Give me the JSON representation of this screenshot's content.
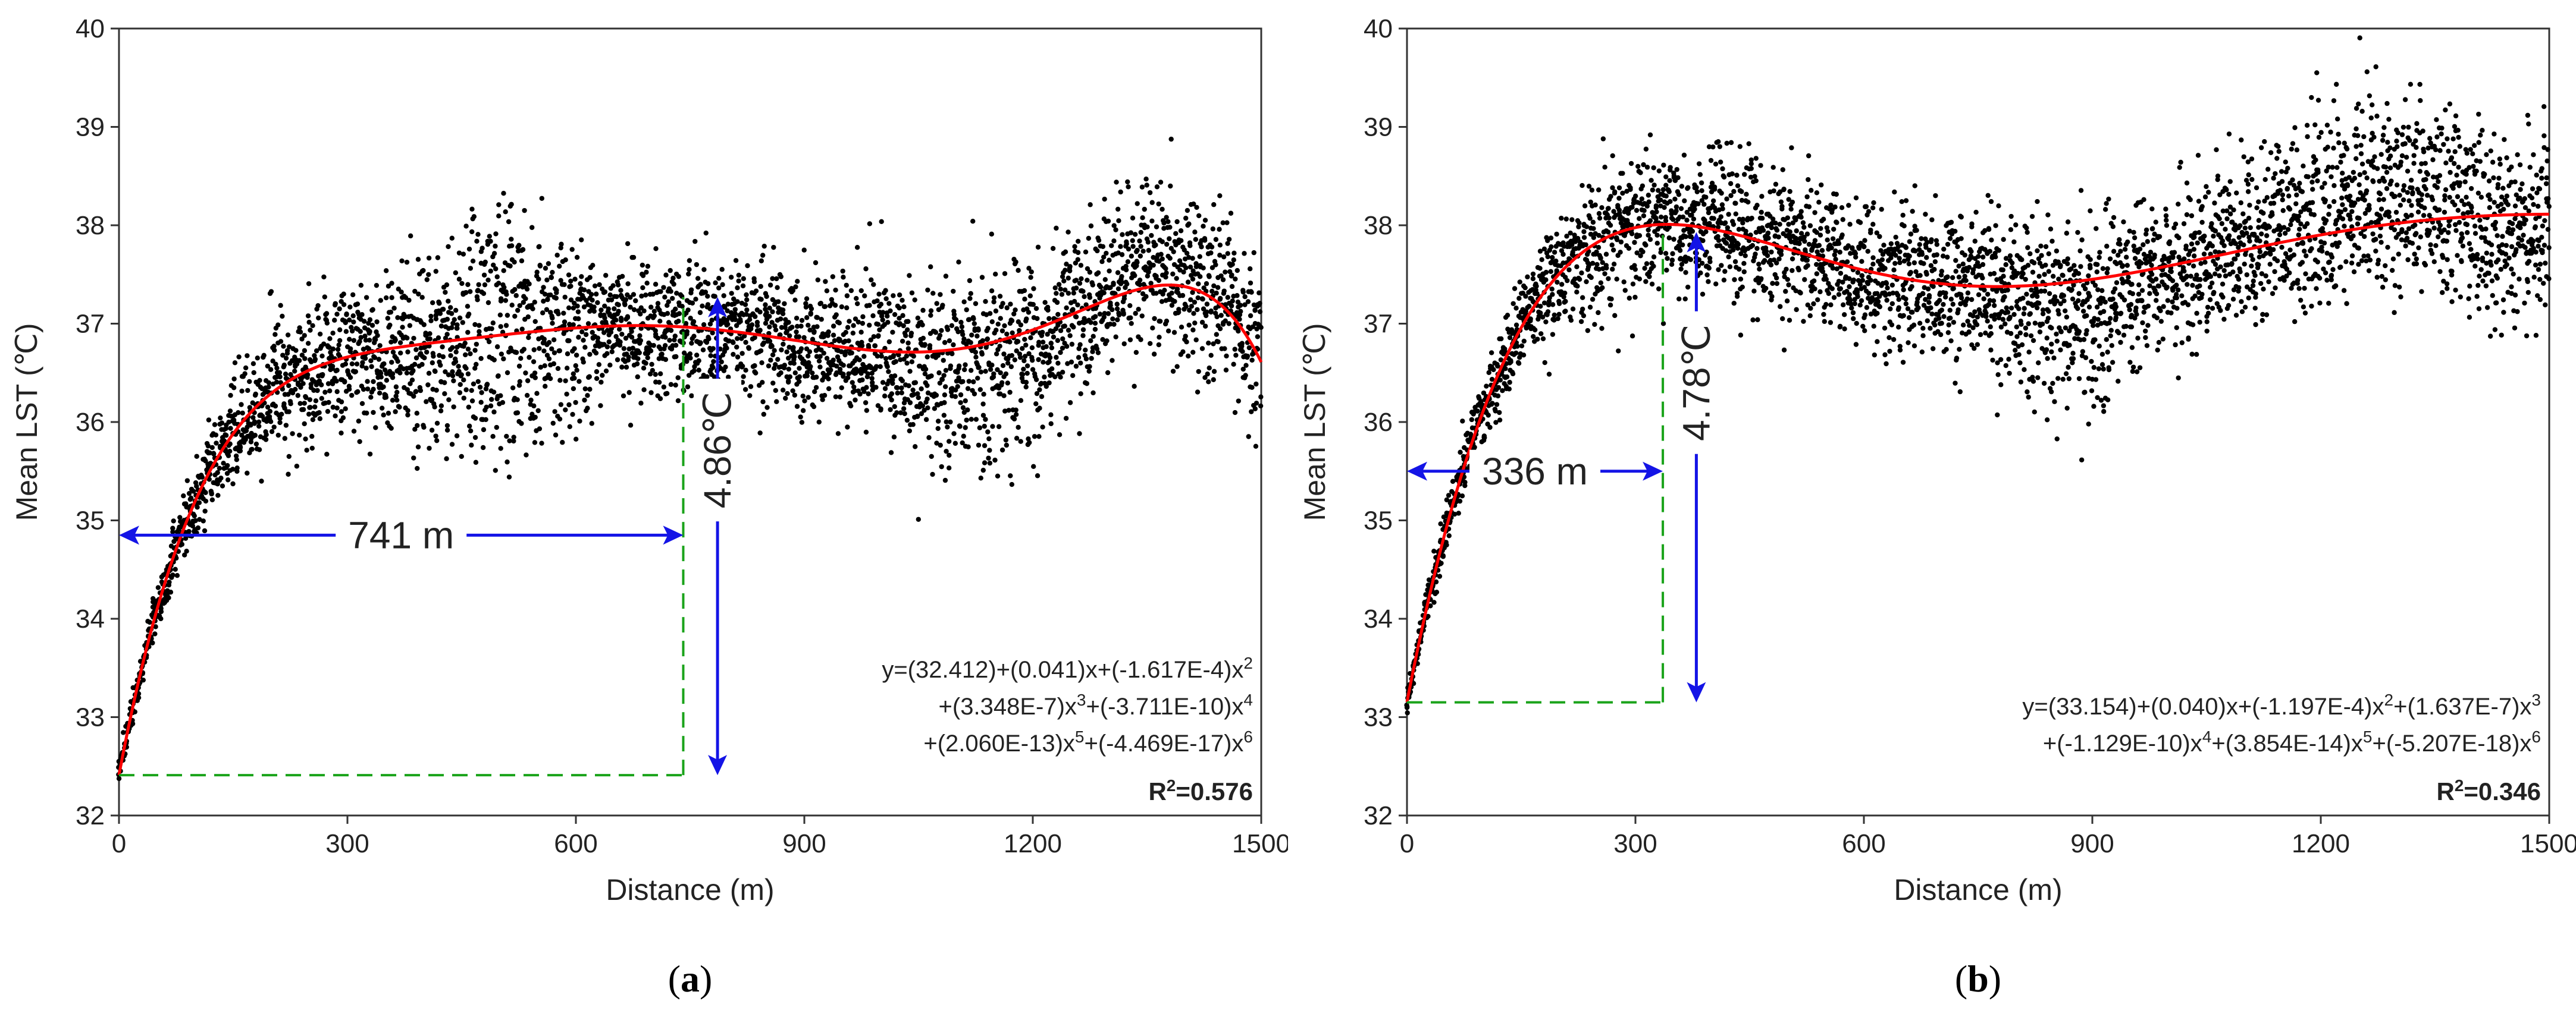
{
  "chart_data": [
    {
      "type": "scatter",
      "panel_label": "a",
      "xlabel": "Distance (m)",
      "ylabel": "Mean LST (℃)",
      "xlim": [
        0,
        1500
      ],
      "ylim": [
        32,
        40
      ],
      "xticks": [
        0,
        300,
        600,
        900,
        1200,
        1500
      ],
      "yticks": [
        32,
        33,
        34,
        35,
        36,
        37,
        38,
        39,
        40
      ],
      "marker_color": "#000000",
      "fit_color": "#ff0000",
      "fit": {
        "coefficients": [
          32.412,
          0.041,
          -0.0001617,
          3.348e-07,
          -3.711e-10,
          2.06e-13,
          -4.469e-17
        ],
        "r2_label": "R",
        "r2_sup": "2",
        "r2_value": "=0.576",
        "equation_lines": [
          [
            {
              "t": "y=(32.412)+(0.041)x+(-1.617E-4)x"
            },
            {
              "t": "2",
              "sup": true
            }
          ],
          [
            {
              "t": "+(3.348E-7)x"
            },
            {
              "t": "3",
              "sup": true
            },
            {
              "t": "+(-3.711E-10)x"
            },
            {
              "t": "4",
              "sup": true
            }
          ],
          [
            {
              "t": "+(2.060E-13)x"
            },
            {
              "t": "5",
              "sup": true
            },
            {
              "t": "+(-4.469E-17)x"
            },
            {
              "t": "6",
              "sup": true
            }
          ]
        ]
      },
      "annotations": {
        "distance_label": "741 m",
        "distance_value": 741,
        "delta_label": "4.86℃",
        "start_lst": 32.41,
        "peak_lst": 37.27,
        "arrow_y": 34.85,
        "delta_arrow_x": 786
      },
      "scatter_model": {
        "seed": 7,
        "points_per_x": 4,
        "x_step": 1.6,
        "bumps": [
          {
            "center": 500,
            "width": 90,
            "amp": 0.75
          },
          {
            "center": 1350,
            "width": 110,
            "amp": 0.55
          }
        ],
        "dips": [
          {
            "center": 1150,
            "width": 120,
            "amp": 0.7
          },
          {
            "center": 500,
            "width": 120,
            "amp": 0.7
          }
        ]
      }
    },
    {
      "type": "scatter",
      "panel_label": "b",
      "xlabel": "Distance (m)",
      "ylabel": "Mean LST (℃)",
      "xlim": [
        0,
        1500
      ],
      "ylim": [
        32,
        40
      ],
      "xticks": [
        0,
        300,
        600,
        900,
        1200,
        1500
      ],
      "yticks": [
        32,
        33,
        34,
        35,
        36,
        37,
        38,
        39,
        40
      ],
      "marker_color": "#000000",
      "fit_color": "#ff0000",
      "fit": {
        "coefficients": [
          33.154,
          0.04,
          -0.0001197,
          1.637e-07,
          -1.129e-10,
          3.854e-14,
          -5.207e-18
        ],
        "r2_label": "R",
        "r2_sup": "2",
        "r2_value": "=0.346",
        "equation_lines": [
          [
            {
              "t": "y=(33.154)+(0.040)x+(-1.197E-4)x"
            },
            {
              "t": "2",
              "sup": true
            },
            {
              "t": "+(1.637E-7)x"
            },
            {
              "t": "3",
              "sup": true
            }
          ],
          [
            {
              "t": "+(-1.129E-10)x"
            },
            {
              "t": "4",
              "sup": true
            },
            {
              "t": "+(3.854E-14)x"
            },
            {
              "t": "5",
              "sup": true
            },
            {
              "t": "+(-5.207E-18)x"
            },
            {
              "t": "6",
              "sup": true
            }
          ]
        ]
      },
      "annotations": {
        "distance_label": "336 m",
        "distance_value": 336,
        "delta_label": "4.78℃",
        "start_lst": 33.15,
        "peak_lst": 37.93,
        "arrow_y": 35.5,
        "delta_arrow_x": 380
      },
      "scatter_model": {
        "seed": 11,
        "points_per_x": 4,
        "x_step": 1.6,
        "bumps": [
          {
            "center": 1250,
            "width": 150,
            "amp": 0.9
          },
          {
            "center": 420,
            "width": 80,
            "amp": 0.25
          }
        ],
        "dips": [
          {
            "center": 880,
            "width": 90,
            "amp": 0.8
          },
          {
            "center": 1450,
            "width": 80,
            "amp": 0.5
          }
        ]
      }
    }
  ]
}
